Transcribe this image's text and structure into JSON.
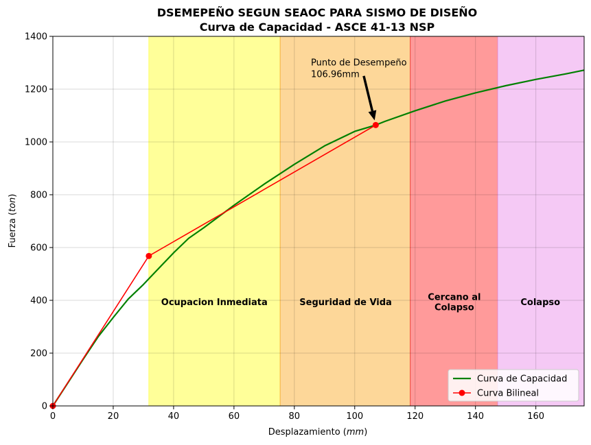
{
  "chart_data": {
    "type": "line",
    "title": "DSEMEPEÑO SEGUN SEAOC PARA SISMO DE DISEÑO",
    "subtitle": "Curva de Capacidad - ASCE 41-13 NSP",
    "xlabel_main": "Desplazamiento (",
    "xlabel_unit": "mm",
    "xlabel_end": ")",
    "ylabel_main": "Fuerza (",
    "ylabel_unit": "ton",
    "ylabel_end": ")",
    "xlim": [
      0,
      176
    ],
    "ylim": [
      0,
      1400
    ],
    "xticks": [
      0,
      20,
      40,
      60,
      80,
      100,
      120,
      140,
      160
    ],
    "yticks": [
      0,
      200,
      400,
      600,
      800,
      1000,
      1200,
      1400
    ],
    "grid": true,
    "legend_position": "lower-right",
    "zones": [
      {
        "label": [
          "Ocupacion Inmediata"
        ],
        "x0": 31.8,
        "x1": 75.3,
        "color": "#ffff99",
        "edge": "#ffff66",
        "label_x": 53.5,
        "label_y": 395
      },
      {
        "label": [
          "Seguridad de Vida"
        ],
        "x0": 75.3,
        "x1": 118.4,
        "color": "#fdd799",
        "edge": "#f5b040",
        "label_x": 97,
        "label_y": 395
      },
      {
        "label": [
          "Cercano al",
          "Colapso"
        ],
        "x0": 118.4,
        "x1": 147.4,
        "color": "#ff9a9a",
        "edge": "#ee4444",
        "label_x": 133,
        "label_y": 395
      },
      {
        "label": [
          "Colapso"
        ],
        "x0": 147.4,
        "x1": 176,
        "color": "#f5c9f5",
        "edge": "#e8a0e8",
        "label_x": 161.5,
        "label_y": 395
      }
    ],
    "series": [
      {
        "name": "Curva de Capacidad",
        "color": "#008000",
        "markers": false,
        "x": [
          0,
          5,
          10,
          15,
          20,
          25,
          30,
          35,
          40,
          45,
          50,
          60,
          70,
          80,
          90,
          100,
          106.96,
          110,
          120,
          130,
          140,
          150,
          160,
          170,
          176
        ],
        "y": [
          0,
          88,
          176,
          262,
          335,
          405,
          460,
          520,
          580,
          635,
          675,
          760,
          840,
          915,
          985,
          1040,
          1064,
          1078,
          1118,
          1155,
          1186,
          1213,
          1237,
          1258,
          1272
        ]
      },
      {
        "name": "Curva Bilineal",
        "color": "#ff0000",
        "markers": true,
        "x": [
          0,
          31.8,
          106.96
        ],
        "y": [
          0,
          568,
          1064
        ]
      }
    ],
    "annotation": {
      "lines": [
        "Punto de Desempeño",
        "106.96mm"
      ],
      "point": [
        106.96,
        1064
      ],
      "text_at": [
        85.5,
        1290
      ],
      "arrow_from": [
        103,
        1250
      ]
    }
  }
}
